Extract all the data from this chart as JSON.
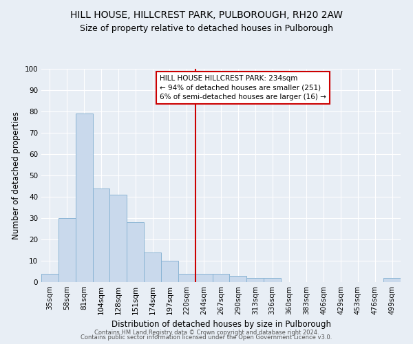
{
  "title": "HILL HOUSE, HILLCREST PARK, PULBOROUGH, RH20 2AW",
  "subtitle": "Size of property relative to detached houses in Pulborough",
  "xlabel": "Distribution of detached houses by size in Pulborough",
  "ylabel": "Number of detached properties",
  "bar_labels": [
    "35sqm",
    "58sqm",
    "81sqm",
    "104sqm",
    "128sqm",
    "151sqm",
    "174sqm",
    "197sqm",
    "220sqm",
    "244sqm",
    "267sqm",
    "290sqm",
    "313sqm",
    "336sqm",
    "360sqm",
    "383sqm",
    "406sqm",
    "429sqm",
    "453sqm",
    "476sqm",
    "499sqm"
  ],
  "bar_values": [
    4,
    30,
    79,
    44,
    41,
    28,
    14,
    10,
    4,
    4,
    4,
    3,
    2,
    2,
    0,
    0,
    0,
    0,
    0,
    0,
    2
  ],
  "bar_color": "#c9d9ec",
  "bar_edgecolor": "#8ab4d4",
  "vline_color": "#cc0000",
  "annotation_text": "HILL HOUSE HILLCREST PARK: 234sqm\n← 94% of detached houses are smaller (251)\n6% of semi-detached houses are larger (16) →",
  "annotation_box_color": "#ffffff",
  "annotation_border_color": "#cc0000",
  "ylim": [
    0,
    100
  ],
  "yticks": [
    0,
    10,
    20,
    30,
    40,
    50,
    60,
    70,
    80,
    90,
    100
  ],
  "background_color": "#e8eef5",
  "title_fontsize": 10,
  "subtitle_fontsize": 9,
  "axis_label_fontsize": 8.5,
  "tick_fontsize": 7.5,
  "footer_line1": "Contains HM Land Registry data © Crown copyright and database right 2024.",
  "footer_line2": "Contains public sector information licensed under the Open Government Licence v3.0."
}
